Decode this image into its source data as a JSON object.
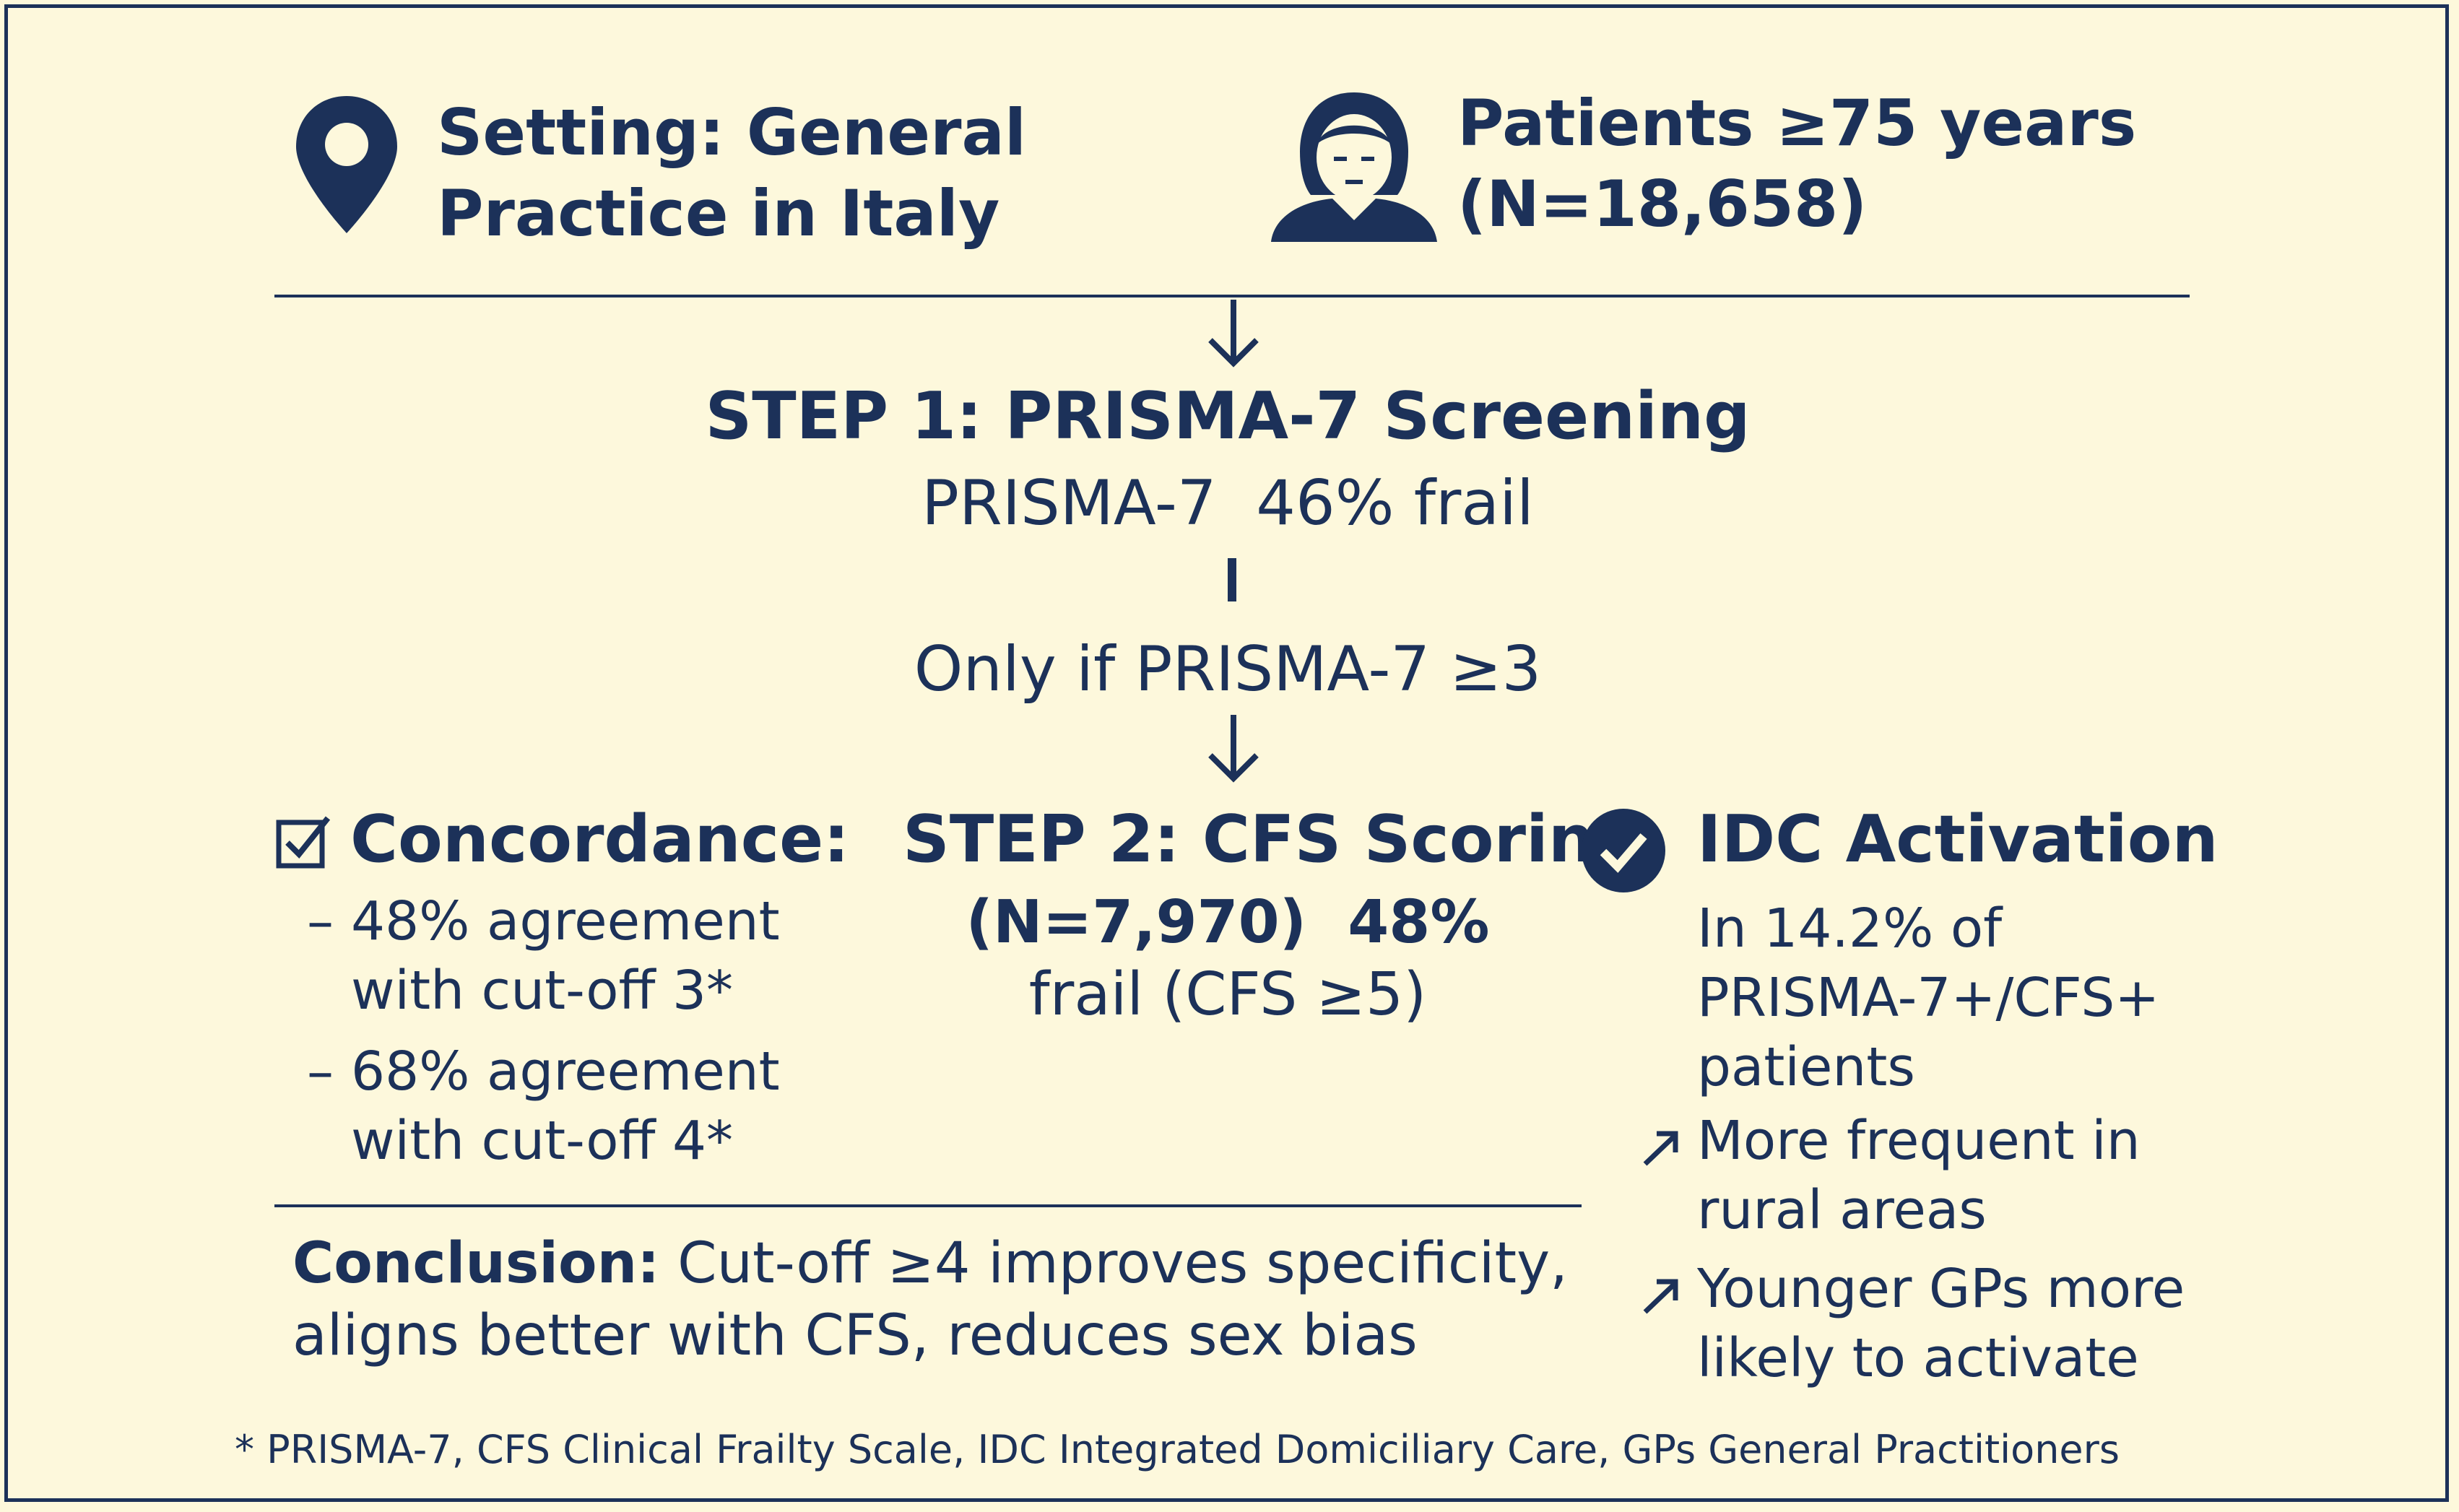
{
  "header": {
    "setting": {
      "icon": "map-pin-icon",
      "line1": "Setting: General",
      "line2": "Practice in Italy"
    },
    "patients": {
      "icon": "person-icon",
      "line1": "Patients ≥75 years",
      "line2": "(N=18,658)"
    }
  },
  "step1": {
    "title": "STEP 1: PRISMA-7 Screening",
    "result": "PRISMA-7  46% frail",
    "condition": "Only if PRISMA-7 ≥3"
  },
  "concordance": {
    "icon": "checkbox-icon",
    "title": "Concordance:",
    "items": [
      {
        "dash": "–",
        "line1": "48% agreement",
        "line2": "with cut-off 3*"
      },
      {
        "dash": "–",
        "line1": "68% agreement",
        "line2": "with cut-off 4*"
      }
    ]
  },
  "step2": {
    "title": "STEP 2: CFS Scoring",
    "line1": "(N=7,970)  48%",
    "line2": "frail (CFS ≥5)"
  },
  "idc": {
    "icon": "check-circle-icon",
    "title": "IDC Activation",
    "line1": "In 14.2% of",
    "line2": "PRISMA-7+/CFS+",
    "line3": "patients",
    "bullets": [
      {
        "icon": "trend-up-icon",
        "line1": "More frequent in",
        "line2": "rural areas"
      },
      {
        "icon": "trend-up-icon",
        "line1": "Younger GPs more",
        "line2": "likely to activate"
      }
    ]
  },
  "conclusion": {
    "label": "Conclusion:",
    "line1": " Cut-off ≥4 improves specificity,",
    "line2": "aligns better with CFS, reduces sex bias"
  },
  "footnote": "* PRISMA-7, CFS Clinical Frailty Scale, IDC Integrated Domiciliary Care, GPs General Practitioners",
  "colors": {
    "background": "#fdf8dc",
    "ink": "#1c3159"
  }
}
